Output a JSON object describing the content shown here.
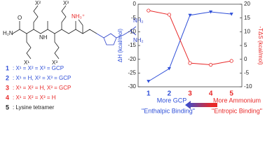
{
  "chart_data": {
    "type": "line",
    "categories": [
      "1",
      "2",
      "3",
      "4",
      "5"
    ],
    "y_label": "ΔH (kcal/mol)",
    "y2_label": "-TΔS (kcal/mol)",
    "ylim": [
      -30,
      0
    ],
    "yticks": [
      -30,
      -25,
      -20,
      -15,
      -10,
      -5,
      0
    ],
    "y2lim": [
      -10,
      20
    ],
    "y2ticks": [
      -10,
      -5,
      0,
      5,
      10,
      15,
      20
    ],
    "series": [
      {
        "name": "ΔH",
        "color": "#2f4fd8",
        "marker": "triangle-down",
        "values": [
          -28,
          -23.4,
          -4,
          -2.8,
          -3.6
        ]
      },
      {
        "name": "-TΔS",
        "color": "#e82828",
        "marker": "open-circle",
        "axis": "y2",
        "values": [
          17.7,
          16.2,
          -1.4,
          -2,
          -0.6
        ]
      }
    ],
    "annotations": {
      "left_top": "More GCP",
      "left_bottom": "\"Enthalpic Binding\"",
      "right_top": "More Ammonium",
      "right_bottom": "\"Entropic Binding\""
    }
  },
  "structure": {
    "x1": "X¹",
    "x2": "X²",
    "x3": "X³",
    "h2n": "H₂N",
    "ammonium": "NH₃⁺",
    "nh2a": "NH₂",
    "nh2b": "NH₂",
    "o": "O",
    "nh": "NH"
  },
  "compound_list": [
    {
      "number": "1",
      "text": ": X¹ = X² = X³ = GCP",
      "color": "#2f4fd8"
    },
    {
      "number": "2",
      "text": ": X¹ = H, X² = X³ = GCP",
      "color": "#2f4fd8"
    },
    {
      "number": "3",
      "text": ": X¹ = X² = H, X³ = GCP",
      "color": "#e82828"
    },
    {
      "number": "4",
      "text": ": X¹ = X² = X³ = H",
      "color": "#e82828"
    },
    {
      "number": "5",
      "text": ": Lysine tetramer",
      "color": "#222222"
    }
  ]
}
